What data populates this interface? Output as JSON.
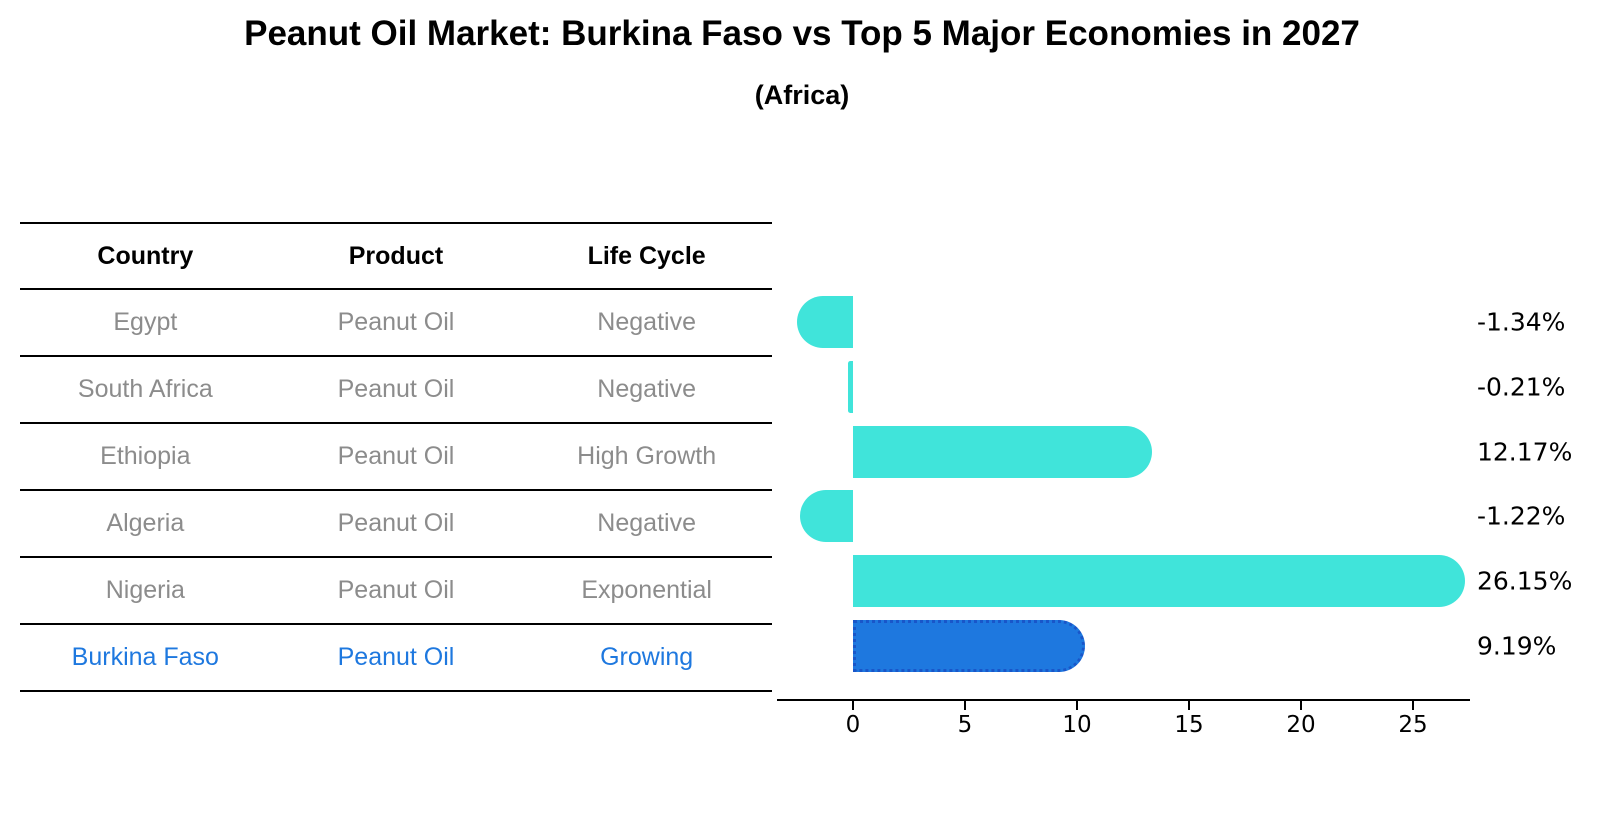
{
  "title": "Peanut Oil Market: Burkina Faso vs Top 5 Major Economies in 2027",
  "subtitle": "(Africa)",
  "colors": {
    "bar": "#40E4DA",
    "highlight_bar": "#1E78DF",
    "highlight_border": "#1956C9",
    "highlight_text": "#1E78DF",
    "row_text": "#8C8C8C",
    "header_text": "#000000",
    "axis": "#000000"
  },
  "table": {
    "headers": [
      "Country",
      "Product",
      "Life Cycle"
    ],
    "rows": [
      {
        "country": "Egypt",
        "product": "Peanut Oil",
        "life_cycle": "Negative",
        "highlight": false
      },
      {
        "country": "South Africa",
        "product": "Peanut Oil",
        "life_cycle": "Negative",
        "highlight": false
      },
      {
        "country": "Ethiopia",
        "product": "Peanut Oil",
        "life_cycle": "High Growth",
        "highlight": false
      },
      {
        "country": "Algeria",
        "product": "Peanut Oil",
        "life_cycle": "Negative",
        "highlight": false
      },
      {
        "country": "Nigeria",
        "product": "Peanut Oil",
        "life_cycle": "Exponential",
        "highlight": false
      },
      {
        "country": "Burkina Faso",
        "product": "Peanut Oil",
        "life_cycle": "Growing",
        "highlight": true
      }
    ]
  },
  "chart_data": {
    "type": "bar",
    "orientation": "horizontal",
    "title": "Peanut Oil Market: Burkina Faso vs Top 5 Major Economies in 2027 (Africa)",
    "xlabel": "",
    "ylabel": "",
    "categories": [
      "Egypt",
      "South Africa",
      "Ethiopia",
      "Algeria",
      "Nigeria",
      "Burkina Faso"
    ],
    "values": [
      -1.34,
      -0.21,
      12.17,
      -1.22,
      26.15,
      9.19
    ],
    "value_labels": [
      "-1.34%",
      "-0.21%",
      "12.17%",
      "-1.22%",
      "26.15%",
      "9.19%"
    ],
    "highlight_index": 5,
    "xticks": [
      0,
      5,
      10,
      15,
      20,
      25
    ],
    "xlim": [
      -3.4,
      27.6
    ],
    "grid": false,
    "legend": false
  }
}
